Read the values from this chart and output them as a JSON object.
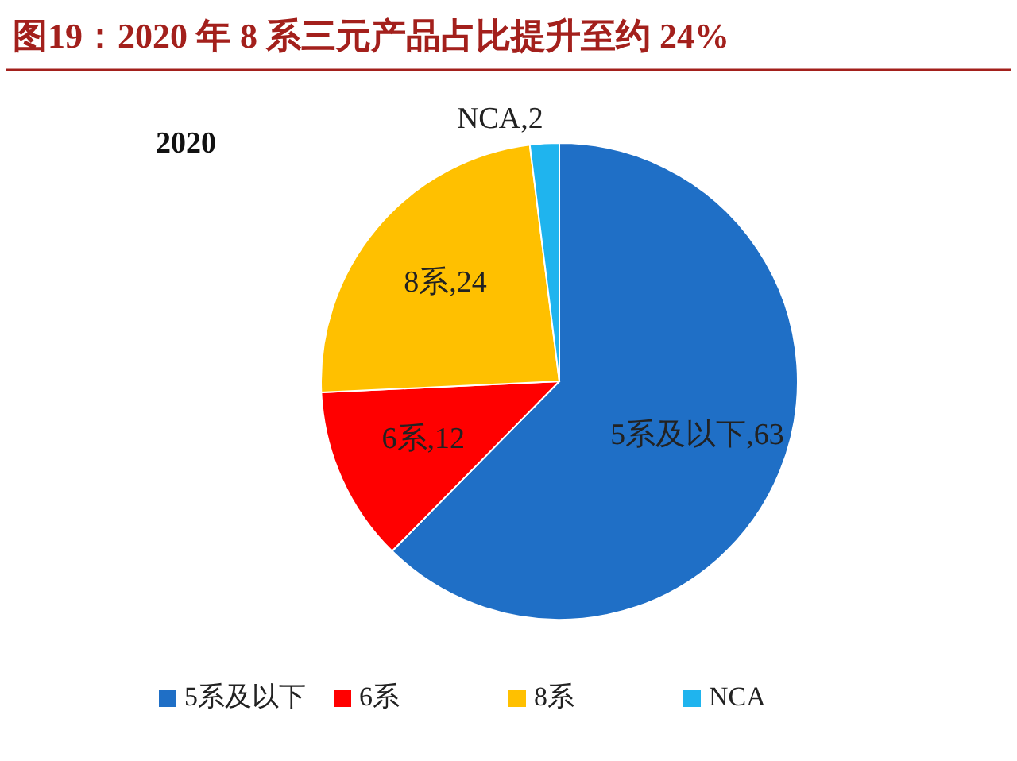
{
  "chart_data": {
    "type": "pie",
    "title": "图19：2020 年 8 系三元产品占比提升至约 24%",
    "subtitle": "2020",
    "categories": [
      "5系及以下",
      "6系",
      "8系",
      "NCA"
    ],
    "values": [
      63,
      12,
      24,
      2
    ],
    "colors": [
      "#1f6fc6",
      "#ff0000",
      "#ffc000",
      "#1fb4ee"
    ],
    "value_labels": [
      ",63",
      ",12",
      ",24",
      ",2"
    ],
    "legend": "bottom"
  }
}
